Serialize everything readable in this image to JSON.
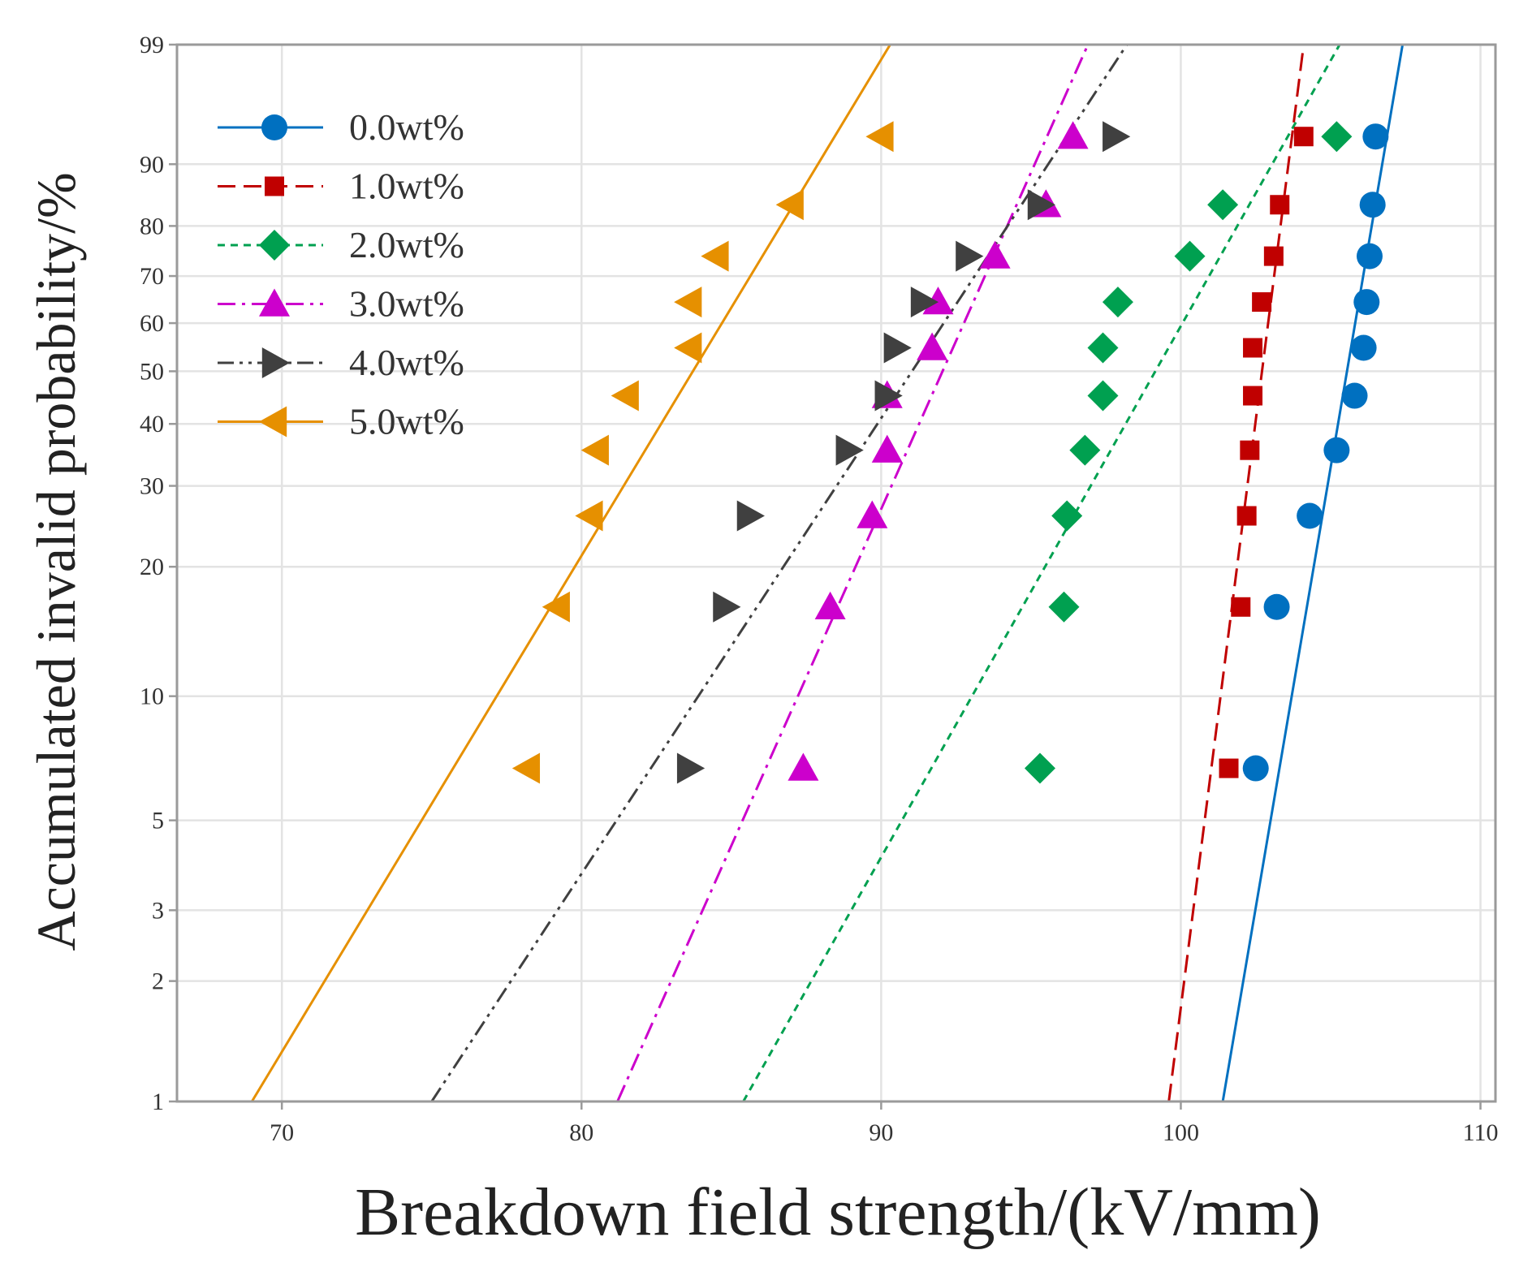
{
  "chart_data": {
    "type": "scatter",
    "xlabel": "Breakdown field strength/(kV/mm)",
    "ylabel": "Accumulated invalid probability/%",
    "xlim": [
      66.5,
      110.5
    ],
    "ylim": [
      1,
      99
    ],
    "y_scale": "weibull-probability",
    "xticks": [
      70,
      80,
      90,
      100,
      110
    ],
    "yticks": [
      1,
      2,
      3,
      5,
      10,
      20,
      30,
      40,
      50,
      60,
      70,
      80,
      90,
      99
    ],
    "grid": true,
    "legend_position": "top-left",
    "probabilities": [
      6.7,
      16.2,
      25.9,
      35.5,
      45.2,
      54.8,
      64.5,
      74.1,
      83.8,
      93.3
    ],
    "series": [
      {
        "name": "0.0wt%",
        "color": "#0070c0",
        "marker": "circle",
        "line": "solid",
        "x": [
          102.5,
          103.2,
          104.3,
          105.2,
          105.8,
          106.1,
          106.2,
          106.3,
          106.4,
          106.5
        ],
        "fit": [
          [
            101.4,
            1
          ],
          [
            107.4,
            99
          ]
        ]
      },
      {
        "name": "1.0wt%",
        "color": "#c00000",
        "marker": "square",
        "line": "dash",
        "x": [
          101.6,
          102.0,
          102.2,
          102.3,
          102.4,
          102.4,
          102.7,
          103.1,
          103.3,
          104.1
        ],
        "fit": [
          [
            99.6,
            1
          ],
          [
            104.1,
            99
          ]
        ]
      },
      {
        "name": "2.0wt%",
        "color": "#00a050",
        "marker": "diamond",
        "line": "dot",
        "x": [
          95.3,
          96.1,
          96.2,
          96.8,
          97.4,
          97.4,
          97.9,
          100.3,
          101.4,
          105.2
        ],
        "fit": [
          [
            85.4,
            1
          ],
          [
            105.3,
            99
          ]
        ]
      },
      {
        "name": "3.0wt%",
        "color": "#cc00cc",
        "marker": "triangle-up",
        "line": "dashdot",
        "x": [
          87.4,
          88.3,
          89.7,
          90.2,
          90.2,
          91.7,
          91.9,
          93.8,
          95.5,
          96.4
        ],
        "fit": [
          [
            81.2,
            1
          ],
          [
            96.9,
            99
          ]
        ]
      },
      {
        "name": "4.0wt%",
        "color": "#404040",
        "marker": "triangle-right",
        "line": "dashdotdot",
        "x": [
          83.6,
          84.8,
          85.6,
          88.9,
          90.2,
          90.5,
          91.4,
          92.9,
          95.3,
          97.8
        ],
        "fit": [
          [
            75.0,
            1
          ],
          [
            98.2,
            99
          ]
        ]
      },
      {
        "name": "5.0wt%",
        "color": "#e69000",
        "marker": "triangle-left",
        "line": "solid",
        "x": [
          78.2,
          79.2,
          80.3,
          80.5,
          81.5,
          83.6,
          83.6,
          84.5,
          87.0,
          90.0
        ],
        "fit": [
          [
            69.0,
            1
          ],
          [
            90.3,
            99
          ]
        ]
      }
    ]
  }
}
